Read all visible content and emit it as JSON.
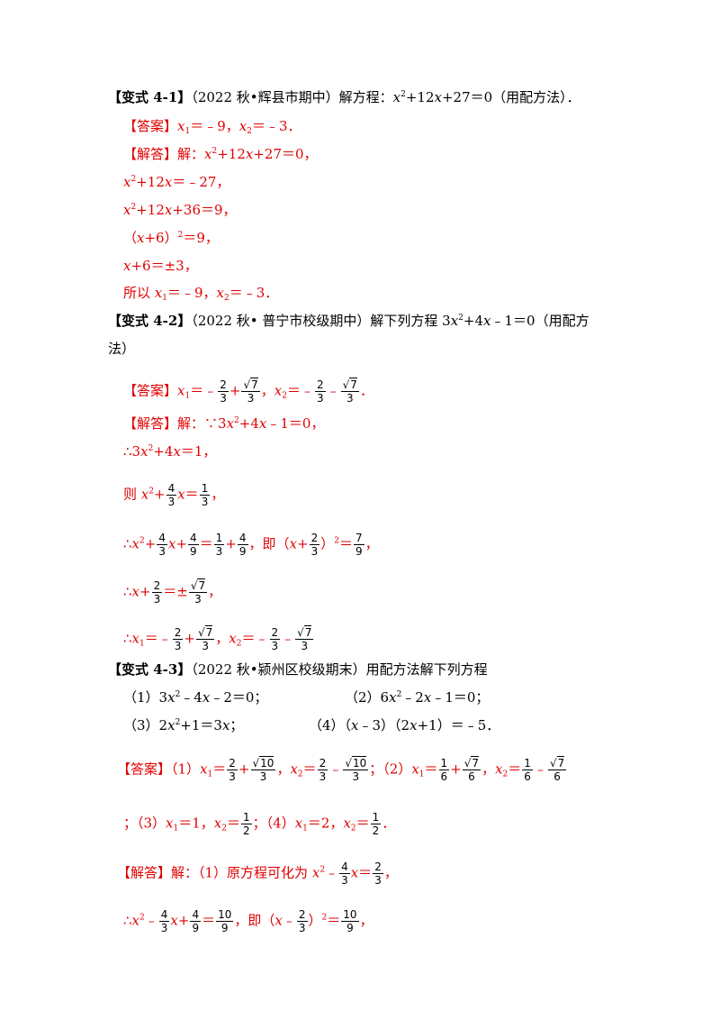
{
  "colors": {
    "answer": "#e00000",
    "text": "#000000"
  },
  "q41": {
    "head": "【变式 4-1】",
    "src": "（2022 秋•辉县市期中）解方程：",
    "eq_a": "x",
    "eq_b": "+12",
    "eq_c": "x",
    "eq_d": "+27＝0（用配方法）．",
    "ans_tag": "【答案】",
    "ans_x": "x",
    "ans_v1": "＝﹣9，",
    "ans_v2": "＝﹣3．",
    "sol_tag": "【解答】",
    "sol_intro": "解：",
    "s1": "+12",
    "s1b": "+27＝0，",
    "s2": "+12",
    "s2b": "＝﹣27，",
    "s3": "+12",
    "s3b": "+36＝9，",
    "s4": "（",
    "s4b": "+6）",
    "s4c": "＝9，",
    "s5": "+6＝±3，",
    "s6": "所以 ",
    "s6b": "＝﹣9，",
    "s6c": "＝﹣3．"
  },
  "q42": {
    "head": "【变式 4-2】",
    "src": "（2022 秋• 普宁市校级期中）解下列方程 3",
    "eq_b": "+4",
    "eq_c": "﹣1＝0（用配方",
    "cont": "法）",
    "ans_tag": "【答案】",
    "eq1": "＝﹣",
    "plus": "+",
    "comma": "，",
    "eq2": "＝﹣",
    "minus": "﹣",
    "end": "．",
    "sol_tag": "【解答】",
    "sol_intro": "解：∵3",
    "sol_a": "+4",
    "sol_b": "﹣1＝0，",
    "s2": "∴3",
    "s2b": "+4",
    "s2c": "＝1，",
    "s3": "则 ",
    "s3b": "+",
    "s3c": "＝",
    "s3d": "，",
    "s4": "∴",
    "s4b": "+",
    "s4c": "+",
    "s4d": "＝",
    "s4e": "+",
    "s4f": "，即（",
    "s4g": "+",
    "s4h": "）",
    "s4i": "＝",
    "s4j": "，",
    "s5": "∴",
    "s5b": "+",
    "s5c": "＝±",
    "s5d": "，",
    "s6": "∴",
    "s6b": "＝﹣",
    "s6c": "+",
    "s6d": "，",
    "s6e": "＝﹣",
    "s6f": "﹣"
  },
  "q43": {
    "head": "【变式 4-3】",
    "src": "（2022 秋•颍州区校级期末）用配方法解下列方程",
    "p1": "（1）3",
    "p1b": "﹣4",
    "p1c": "﹣2＝0；",
    "p2": "（2）6",
    "p2b": "﹣2",
    "p2c": "﹣1＝0；",
    "p3": "（3）2",
    "p3b": "+1＝3",
    "p3c": "；",
    "p4": "（4）（",
    "p4b": "﹣3）（2",
    "p4c": "+1）＝﹣5．",
    "ans_tag": "【答案】",
    "a1": "（1）",
    "eq": "＝",
    "plus": "+",
    "comma": "，",
    "minus": "﹣",
    "semi": "；",
    "a2": "（2）",
    "a3": "；（3）",
    "a3b": "＝1，",
    "a4": "；（4）",
    "a4b": "＝2，",
    "dot": "．",
    "sol_tag": "【解答】",
    "sol_intro": "解：（1）原方程可化为 ",
    "sol_a": "﹣",
    "sol_b": "＝",
    "sol_c": "，",
    "s2": "∴",
    "s2b": "﹣",
    "s2c": "+",
    "s2d": "＝",
    "s2e": "，即（",
    "s2f": "﹣",
    "s2g": "）",
    "s2h": "＝",
    "s2i": "，"
  },
  "math": {
    "x": "x",
    "sq": "2",
    "s1": "1",
    "s2": "2",
    "n1": "1",
    "n2": "2",
    "n4": "4",
    "n7": "7",
    "n10": "10",
    "d2": "2",
    "d3": "3",
    "d6": "6",
    "d9": "9",
    "root": "√"
  }
}
